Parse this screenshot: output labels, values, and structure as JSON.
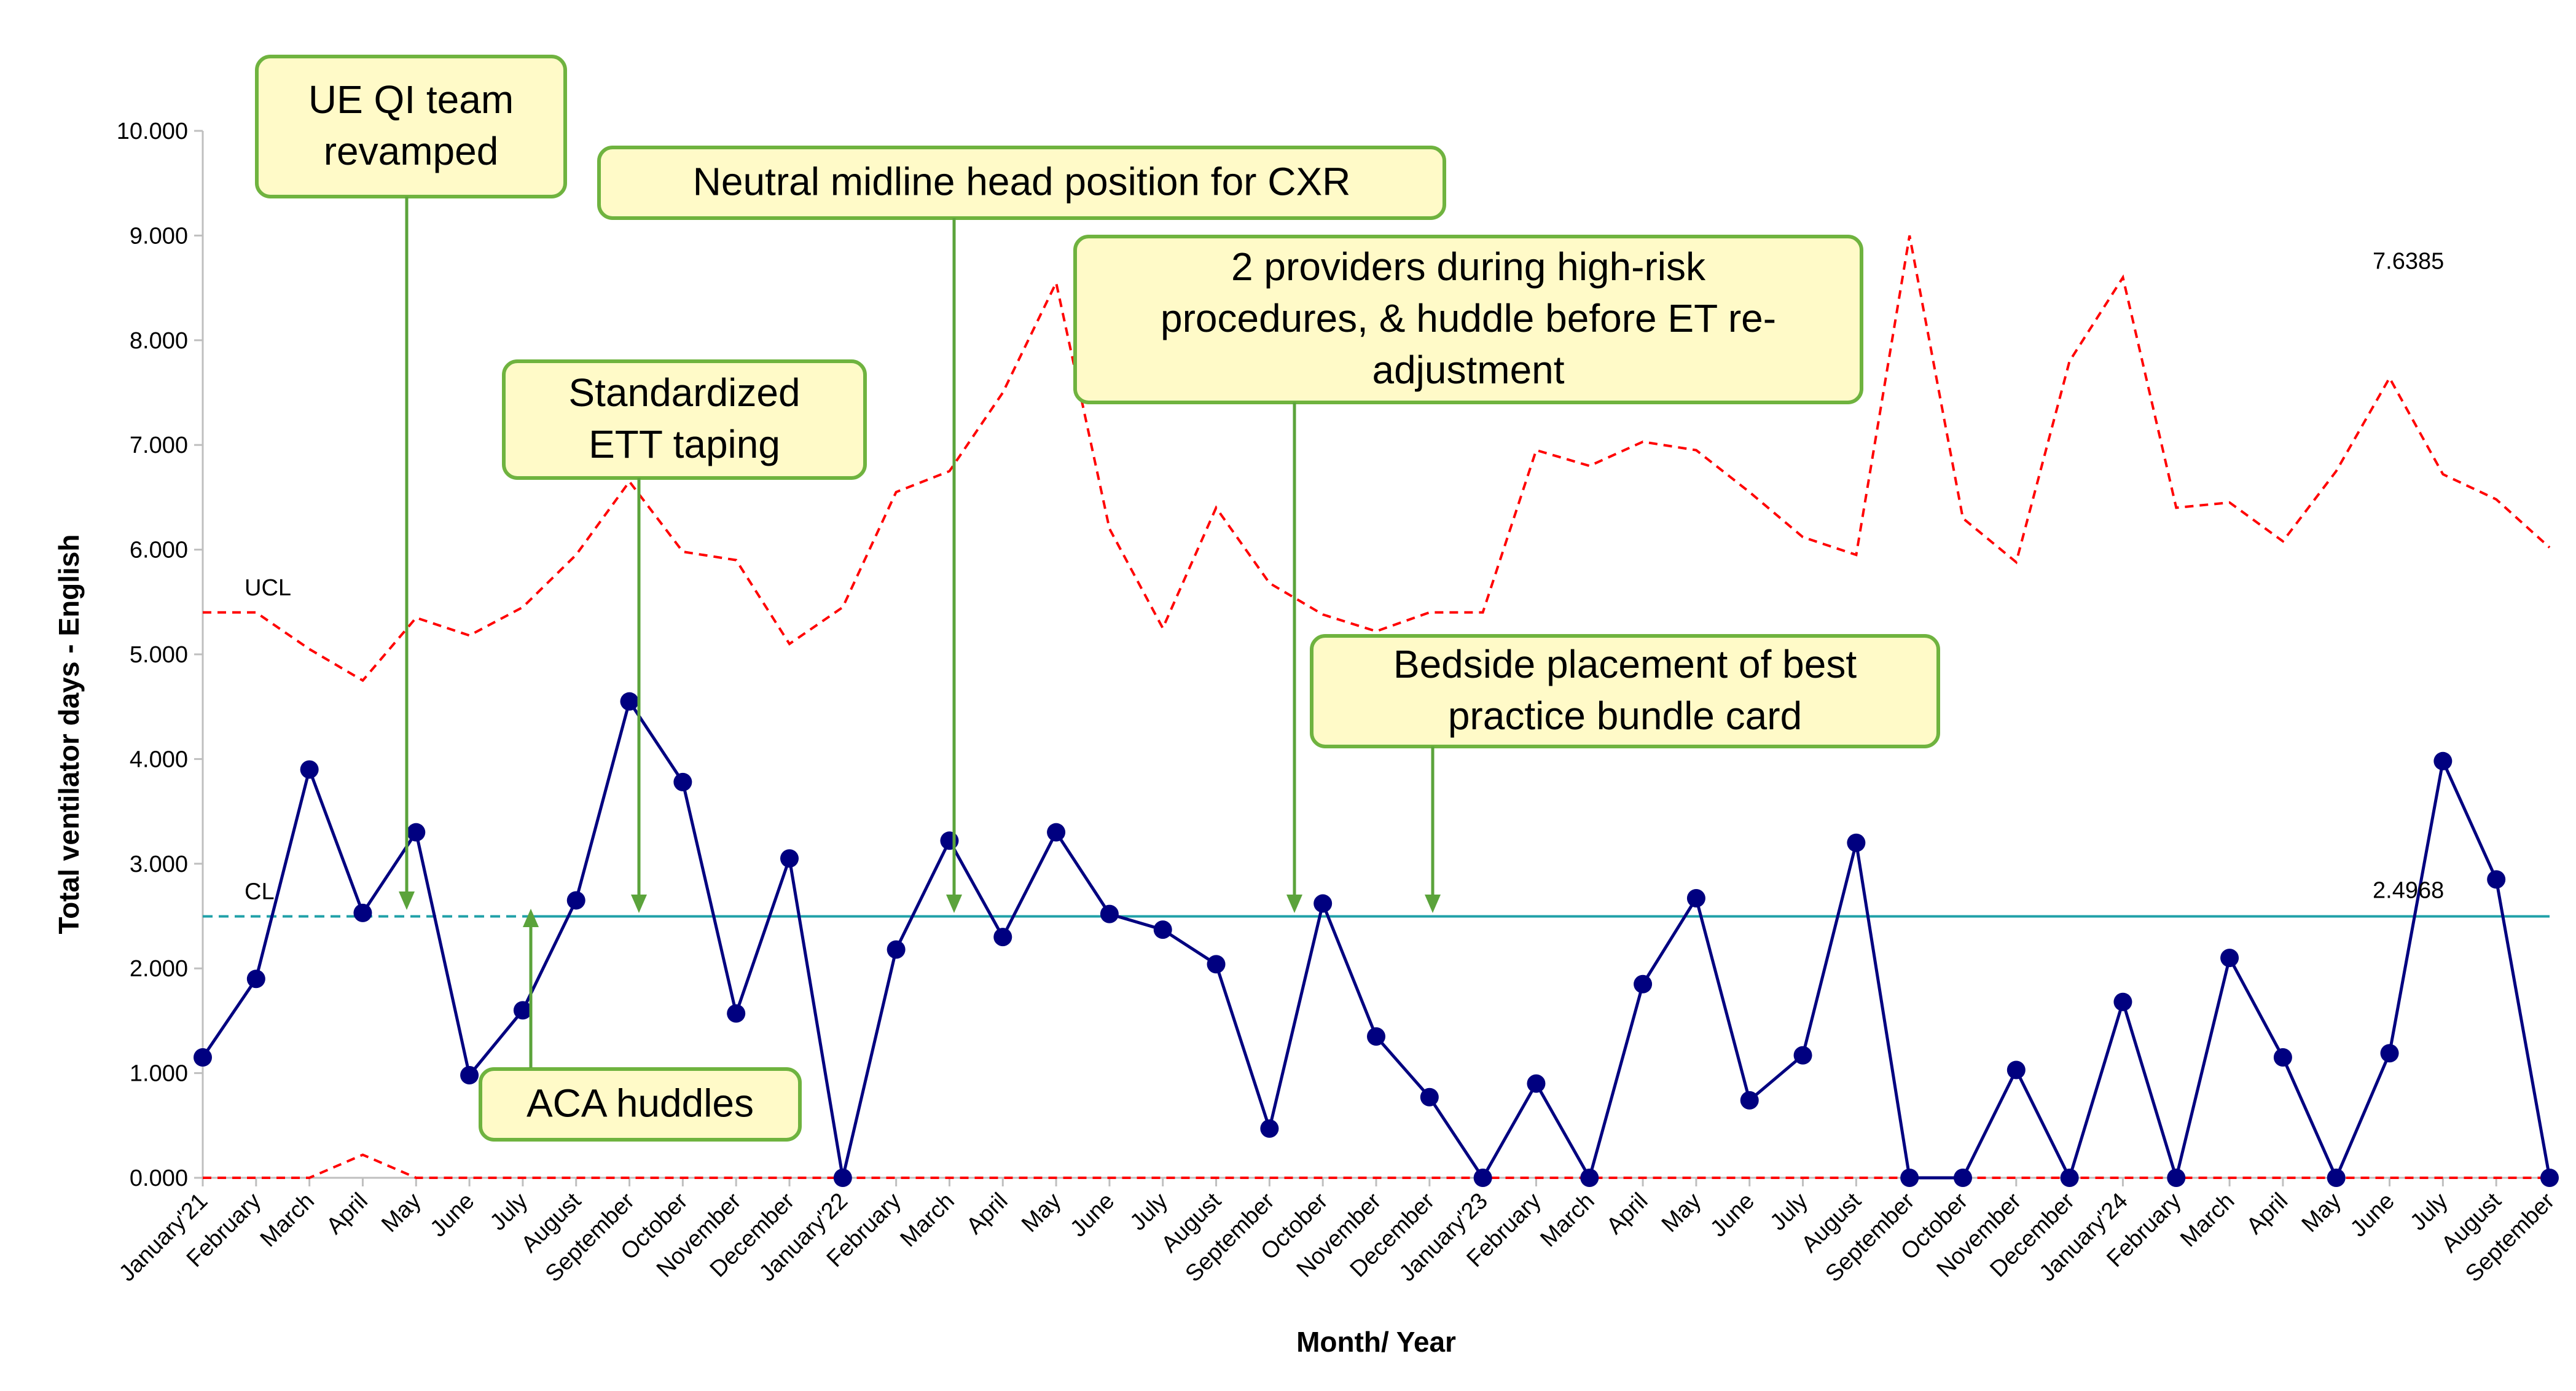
{
  "chart_data": {
    "type": "line",
    "title": "",
    "xlabel": "Month/ Year",
    "ylabel": "Total ventilator days - English",
    "ylim": [
      0,
      10
    ],
    "yticks": [
      "0.000",
      "1.000",
      "2.000",
      "3.000",
      "4.000",
      "5.000",
      "6.000",
      "7.000",
      "8.000",
      "9.000",
      "10.000"
    ],
    "categories": [
      "January'21",
      "February",
      "March",
      "April",
      "May",
      "June",
      "July",
      "August",
      "September",
      "October",
      "November",
      "December",
      "January'22",
      "February",
      "March",
      "April",
      "May",
      "June",
      "July",
      "August",
      "September",
      "October",
      "November",
      "December",
      "January'23",
      "February",
      "March",
      "April",
      "May",
      "June",
      "July",
      "August",
      "September",
      "October",
      "November",
      "December",
      "January'24",
      "February",
      "March",
      "April",
      "May",
      "June",
      "July",
      "August",
      "September"
    ],
    "series": [
      {
        "values": [
          1.15,
          1.9,
          3.9,
          2.53,
          3.3,
          0.98,
          1.6,
          2.65,
          4.55,
          3.78,
          1.57,
          3.05,
          0.0,
          2.18,
          3.22,
          2.3,
          3.3,
          2.52,
          2.37,
          2.04,
          0.47,
          2.62,
          1.35,
          0.77,
          0.0,
          0.9,
          0.0,
          1.85,
          2.67,
          0.74,
          1.17,
          3.2,
          0.0,
          0.0,
          1.03,
          0.0,
          1.68,
          0.0,
          2.1,
          1.15,
          0.0,
          1.19,
          3.98,
          2.85,
          0.0
        ],
        "color": "#000080"
      }
    ],
    "ucl": [
      5.4,
      5.4,
      5.05,
      4.75,
      5.35,
      5.18,
      5.45,
      5.95,
      6.65,
      5.98,
      5.9,
      5.1,
      5.45,
      6.55,
      6.75,
      7.5,
      8.55,
      6.2,
      5.25,
      6.4,
      5.68,
      5.38,
      5.22,
      5.4,
      5.4,
      6.95,
      6.8,
      7.03,
      6.95,
      6.55,
      6.12,
      5.95,
      9.0,
      6.3,
      5.88,
      7.8,
      8.6,
      6.4,
      6.45,
      6.08,
      6.75,
      7.64,
      6.72,
      6.48,
      6.02
    ],
    "lcl": [
      0.0,
      0.0,
      0.0,
      0.22,
      0.0,
      0.0,
      0.0,
      0.0,
      0.0,
      0.0,
      0.0,
      0.0,
      0.0,
      0.0,
      0.0,
      0.0,
      0.0,
      0.0,
      0.0,
      0.0,
      0.0,
      0.0,
      0.0,
      0.0,
      0.0,
      0.0,
      0.0,
      0.0,
      0.0,
      0.0,
      0.0,
      0.0,
      0.0,
      0.0,
      0.0,
      0.0,
      0.0,
      0.0,
      0.0,
      0.0,
      0.0,
      0.0,
      0.0,
      0.0,
      0.0
    ],
    "cl_value": 2.4968,
    "ucl_label": "UCL",
    "cl_label": "CL",
    "cl_value_label": "2.4968",
    "ucl_value_label": "7.6385",
    "colors": {
      "series": "#000080",
      "ucl": "#FF0000",
      "lcl": "#FF0000",
      "cl": "#20A0A8",
      "annotation_fill": "#FFFAC8",
      "annotation_border": "#6FB33F",
      "arrow": "#5BA33B"
    },
    "annotations": [
      {
        "lines": [
          "UE QI team",
          "revamped"
        ],
        "target_index": 4,
        "direction": "down"
      },
      {
        "lines": [
          "Neutral midline head position for CXR"
        ],
        "target_index": 14,
        "direction": "down"
      },
      {
        "lines": [
          "2 providers during high-risk",
          "procedures, & huddle before ET re-",
          "adjustment"
        ],
        "target_index": 21,
        "direction": "down"
      },
      {
        "lines": [
          "Standardized",
          "ETT taping"
        ],
        "target_index": 8,
        "direction": "down"
      },
      {
        "lines": [
          "Bedside placement of best",
          "practice bundle card"
        ],
        "target_index": 23,
        "direction": "down"
      },
      {
        "lines": [
          "ACA huddles"
        ],
        "target_index": 6,
        "direction": "up"
      }
    ]
  }
}
